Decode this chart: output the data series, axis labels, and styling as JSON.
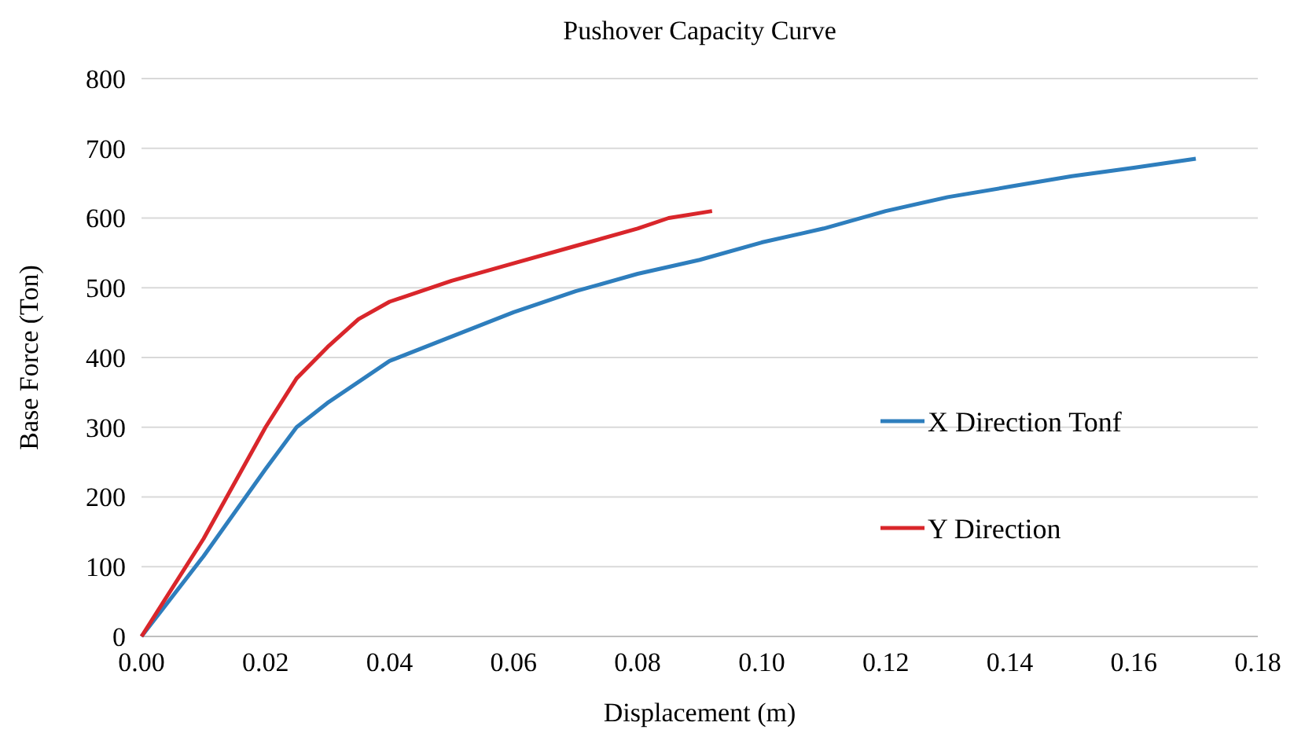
{
  "chart_data": {
    "type": "line",
    "title": "Pushover Capacity Curve",
    "xlabel": "Displacement (m)",
    "ylabel": "Base Force (Ton)",
    "xlim": [
      0,
      0.18
    ],
    "xticks": [
      {
        "value": 0,
        "label": "0.00"
      },
      {
        "value": 0.02,
        "label": "0.02"
      },
      {
        "value": 0.04,
        "label": "0.04"
      },
      {
        "value": 0.06,
        "label": "0.06"
      },
      {
        "value": 0.08,
        "label": "0.08"
      },
      {
        "value": 0.1,
        "label": "0.10"
      },
      {
        "value": 0.12,
        "label": "0.12"
      },
      {
        "value": 0.14,
        "label": "0.14"
      },
      {
        "value": 0.16,
        "label": "0.16"
      },
      {
        "value": 0.18,
        "label": "0.18"
      }
    ],
    "ylim": [
      0,
      800
    ],
    "yticks": [
      0,
      100,
      200,
      300,
      400,
      500,
      600,
      700,
      800
    ],
    "grid": "y",
    "legend": "right",
    "marker": "none",
    "line_style": "solid",
    "series": [
      {
        "name": "X Direction Tonf",
        "color": "#2e7ebd",
        "x": [
          0,
          0.01,
          0.02,
          0.025,
          0.03,
          0.04,
          0.05,
          0.06,
          0.07,
          0.08,
          0.09,
          0.1,
          0.11,
          0.12,
          0.13,
          0.14,
          0.15,
          0.16,
          0.17
        ],
        "values": [
          0,
          115,
          240,
          300,
          335,
          395,
          430,
          465,
          495,
          520,
          540,
          565,
          585,
          610,
          630,
          645,
          660,
          672,
          685
        ]
      },
      {
        "name": "Y Direction",
        "color": "#d9262b",
        "x": [
          0,
          0.01,
          0.02,
          0.025,
          0.03,
          0.035,
          0.04,
          0.05,
          0.06,
          0.07,
          0.08,
          0.085,
          0.092
        ],
        "values": [
          0,
          140,
          300,
          370,
          415,
          455,
          480,
          510,
          535,
          560,
          585,
          600,
          610
        ]
      }
    ]
  }
}
